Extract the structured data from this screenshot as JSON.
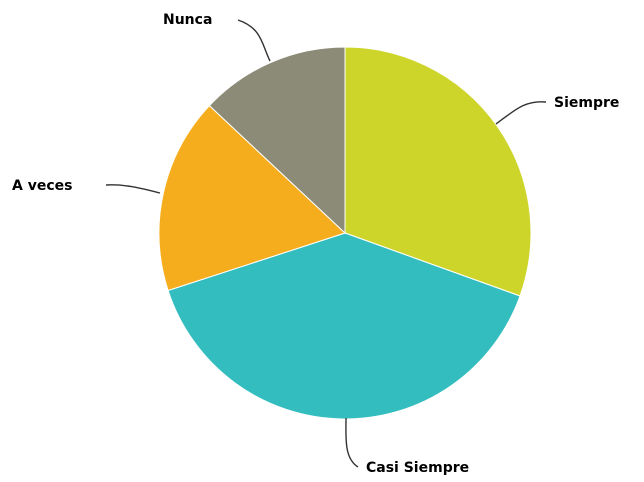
{
  "chart_data": {
    "type": "pie",
    "title": "",
    "categories": [
      "Siempre",
      "Casi Siempre",
      "A veces",
      "Nunca"
    ],
    "values": [
      30.5,
      39.5,
      17.0,
      13.0
    ],
    "colors": [
      "#cdd52a",
      "#33bdbf",
      "#f5ad1e",
      "#8b8b78"
    ],
    "start": "12 o'clock",
    "direction": "clockwise",
    "legend": "none"
  }
}
